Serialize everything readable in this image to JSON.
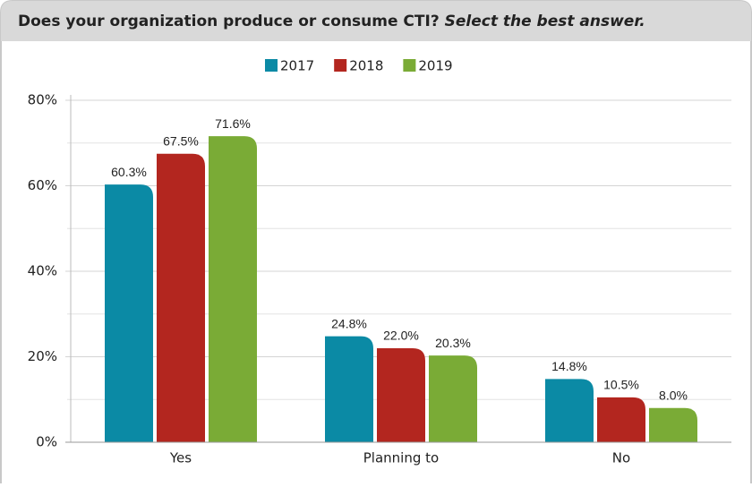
{
  "chart_data": {
    "type": "bar",
    "title": "Does your organization produce or consume CTI?",
    "subtitle": "Select the best answer.",
    "categories": [
      "Yes",
      "Planning to",
      "No"
    ],
    "series": [
      {
        "name": "2017",
        "color": "#0b8aa5",
        "values": [
          60.3,
          24.8,
          14.8
        ],
        "value_labels": [
          "60.3%",
          "24.8%",
          "14.8%"
        ]
      },
      {
        "name": "2018",
        "color": "#b3261f",
        "values": [
          67.5,
          22.0,
          10.5
        ],
        "value_labels": [
          "67.5%",
          "22.0%",
          "10.5%"
        ]
      },
      {
        "name": "2019",
        "color": "#7aab36",
        "values": [
          71.6,
          20.3,
          8.0
        ],
        "value_labels": [
          "71.6%",
          "20.3%",
          "8.0%"
        ]
      }
    ],
    "ylim": [
      0,
      80
    ],
    "yticks": [
      {
        "value": 0,
        "label": "0%"
      },
      {
        "value": 20,
        "label": "20%"
      },
      {
        "value": 40,
        "label": "40%"
      },
      {
        "value": 60,
        "label": "60%"
      },
      {
        "value": 80,
        "label": "80%"
      }
    ],
    "minor_yticks": [
      10,
      30,
      50,
      70
    ],
    "grid": true,
    "legend": "top"
  }
}
